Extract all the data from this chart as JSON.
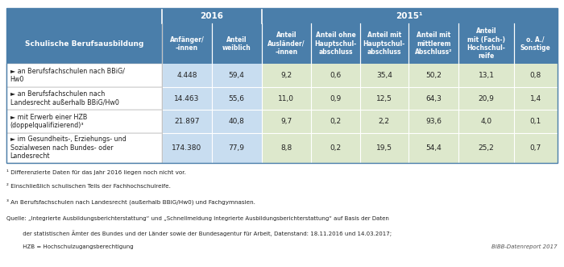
{
  "col_headers": [
    "Anfänger/\n–innen",
    "Anteil\nweiblich",
    "Anteil\nAusländer/\n–innen",
    "Anteil ohne\nHauptschul-\nabschluss",
    "Anteil mit\nHauptschul-\nabschluss",
    "Anteil mit\nmittlerem\nAbschluss²",
    "Anteil\nmit (Fach-)\nHochschul-\nreife",
    "o. A./\nSonstige"
  ],
  "row_header": "Schulische Berufsausbildung",
  "rows": [
    {
      "label": "► an Berufsfachschulen nach BBiG/\nHw0",
      "values": [
        "4.448",
        "59,4",
        "9,2",
        "0,6",
        "35,4",
        "50,2",
        "13,1",
        "0,8"
      ]
    },
    {
      "label": "► an Berufsfachschulen nach\nLandesrecht außerhalb BBiG/Hw0",
      "values": [
        "14.463",
        "55,6",
        "11,0",
        "0,9",
        "12,5",
        "64,3",
        "20,9",
        "1,4"
      ]
    },
    {
      "label": "► mit Erwerb einer HZB\n(doppelqualifizierend)³",
      "values": [
        "21.897",
        "40,8",
        "9,7",
        "0,2",
        "2,2",
        "93,6",
        "4,0",
        "0,1"
      ]
    },
    {
      "label": "► im Gesundheits-, Erziehungs- und\nSozialwesen nach Bundes- oder\nLandesrecht",
      "values": [
        "174.380",
        "77,9",
        "8,8",
        "0,2",
        "19,5",
        "54,4",
        "25,2",
        "0,7"
      ]
    }
  ],
  "footnotes": [
    "¹ Differenzierte Daten für das Jahr 2016 liegen noch nicht vor.",
    "² Einschließlich schulischen Teils der Fachhochschulreife.",
    "³ An Berufsfachschulen nach Landesrecht (außerhalb BBiG/Hw0) und Fachgymnasien."
  ],
  "source_line1": "Quelle: „Integrierte Ausbildungsberichterstattung“ und „Schnellmeldung Integrierte Ausbildungsberichterstattung“ auf Basis der Daten",
  "source_line2": "         der statistischen Ämter des Bundes und der Länder sowie der Bundesagentur für Arbeit, Datenstand: 18.11.2016 und 14.03.2017;",
  "source_line3": "         HZB = Hochschulzugangsberechtigung",
  "bibb": "BIBB-Datenreport 2017",
  "color_header_blue": "#4a7eaa",
  "color_header_blue_dark": "#3d6e99",
  "color_cell_2016": "#c8ddf0",
  "color_cell_2015": "#dde8cc",
  "color_cell_label": "#ffffff",
  "color_border": "#4a7eaa",
  "color_text_dark": "#222222",
  "color_text_white": "#ffffff"
}
